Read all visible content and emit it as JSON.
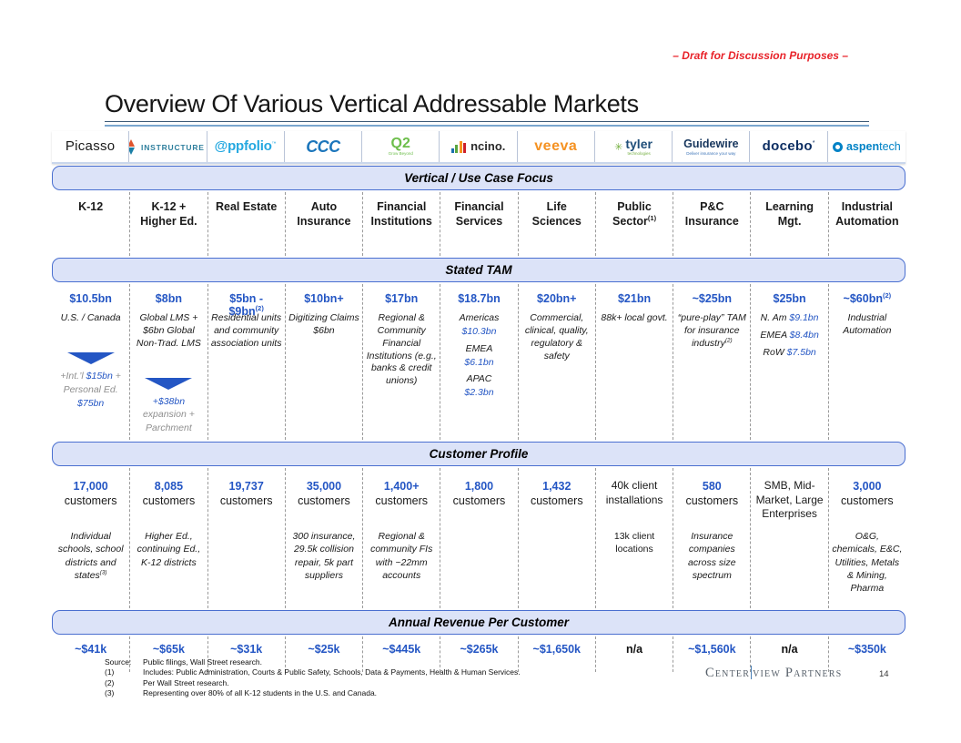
{
  "page": {
    "draft_notice": "– Draft for Discussion Purposes –",
    "title": "Overview Of Various Vertical Addressable Markets",
    "page_number": "14"
  },
  "bands": [
    "Vertical / Use Case Focus",
    "Stated TAM",
    "Customer Profile",
    "Annual Revenue Per Customer"
  ],
  "logos": [
    {
      "id": "picasso",
      "text": "Picasso"
    },
    {
      "id": "instructure",
      "text": "INSTRUCTURE",
      "icon": "diamond-icon"
    },
    {
      "id": "appfolio",
      "text": "@ppfolio"
    },
    {
      "id": "ccc",
      "text": "CCC"
    },
    {
      "id": "q2",
      "text": "Q2",
      "tagline": "Grow Beyond"
    },
    {
      "id": "ncino",
      "text": "ncino.",
      "icon": "bar-chart-icon"
    },
    {
      "id": "veeva",
      "text": "veeva"
    },
    {
      "id": "tyler",
      "text": "tyler",
      "tagline": "technologies",
      "icon": "star-dots-icon"
    },
    {
      "id": "guidewire",
      "text": "Guidewire",
      "tagline": "Deliver insurance your way"
    },
    {
      "id": "docebo",
      "text": "docebo"
    },
    {
      "id": "aspentech",
      "text": "aspen",
      "text2": "tech",
      "icon": "circle-swirl-icon"
    }
  ],
  "columns": [
    {
      "id": "picasso",
      "company": "Picasso",
      "focus": {
        "t": "K-12"
      },
      "tam": {
        "t": "$10.5bn"
      },
      "tam_detail": {
        "lines": [
          {
            "parts": [
              {
                "t": "U.S. / Canada",
                "s": "k"
              }
            ]
          }
        ],
        "arrow": true,
        "extra": [
          {
            "parts": [
              {
                "t": "+Int.’l ",
                "s": "g"
              },
              {
                "t": "$15bn",
                "s": "b"
              },
              {
                "t": " +",
                "s": "g"
              }
            ]
          },
          {
            "parts": [
              {
                "t": "Personal Ed.",
                "s": "g"
              }
            ]
          },
          {
            "parts": [
              {
                "t": "$75bn",
                "s": "b"
              }
            ]
          }
        ]
      },
      "customers": {
        "num": "17,000",
        "label": "customers"
      },
      "customer_desc": {
        "lines": [
          {
            "parts": [
              {
                "t": "Individual schools, school districts and states",
                "s": "i"
              },
              {
                "t": "(3)",
                "s": "i",
                "sup": true
              }
            ]
          }
        ]
      },
      "revenue": {
        "t": "~$41k"
      }
    },
    {
      "id": "instructure",
      "company": "Instructure",
      "focus": {
        "t": "K-12 + Higher Ed."
      },
      "tam": {
        "t": "$8bn"
      },
      "tam_detail": {
        "lines": [
          {
            "parts": [
              {
                "t": "Global LMS + $6bn Global Non-Trad. LMS",
                "s": "k"
              }
            ]
          }
        ],
        "arrow": true,
        "extra": [
          {
            "parts": [
              {
                "t": "+$38bn",
                "s": "b"
              }
            ]
          },
          {
            "parts": [
              {
                "t": "expansion +",
                "s": "g"
              }
            ]
          },
          {
            "parts": [
              {
                "t": "Parchment",
                "s": "g"
              }
            ]
          }
        ]
      },
      "customers": {
        "num": "8,085",
        "label": "customers"
      },
      "customer_desc": {
        "lines": [
          {
            "parts": [
              {
                "t": "Higher Ed., continuing Ed., K-12 districts",
                "s": "i"
              }
            ]
          }
        ]
      },
      "revenue": {
        "t": "~$65k"
      }
    },
    {
      "id": "appfolio",
      "company": "AppFolio",
      "focus": {
        "t": "Real Estate"
      },
      "tam": {
        "t": "$5bn - $9bn",
        "sup": "(2)"
      },
      "tam_detail": {
        "lines": [
          {
            "parts": [
              {
                "t": "Residential units and community association units",
                "s": "k"
              }
            ]
          }
        ]
      },
      "customers": {
        "num": "19,737",
        "label": "customers"
      },
      "revenue": {
        "t": "~$31k"
      }
    },
    {
      "id": "ccc",
      "company": "CCC",
      "focus": {
        "t": "Auto Insurance"
      },
      "tam": {
        "t": "$10bn+"
      },
      "tam_detail": {
        "lines": [
          {
            "parts": [
              {
                "t": "Digitizing Claims $6bn",
                "s": "k"
              }
            ]
          }
        ]
      },
      "customers": {
        "num": "35,000",
        "label": "customers"
      },
      "customer_desc": {
        "lines": [
          {
            "parts": [
              {
                "t": "300 insurance, 29.5k collision repair, 5k part suppliers",
                "s": "i"
              }
            ]
          }
        ]
      },
      "revenue": {
        "t": "~$25k"
      }
    },
    {
      "id": "q2",
      "company": "Q2",
      "focus": {
        "t": "Financial Institutions"
      },
      "tam": {
        "t": "$17bn"
      },
      "tam_detail": {
        "lines": [
          {
            "parts": [
              {
                "t": "Regional & Community Financial Institutions (e.g., banks & credit unions)",
                "s": "k"
              }
            ]
          }
        ]
      },
      "customers": {
        "num": "1,400+",
        "label": "customers"
      },
      "customer_desc": {
        "lines": [
          {
            "parts": [
              {
                "t": "Regional & community FIs with ~22mm accounts",
                "s": "i"
              }
            ]
          }
        ]
      },
      "revenue": {
        "t": "~$445k"
      }
    },
    {
      "id": "ncino",
      "company": "nCino",
      "focus": {
        "t": "Financial Services"
      },
      "tam": {
        "t": "$18.7bn"
      },
      "tam_detail": {
        "lines": [
          {
            "parts": [
              {
                "t": "Americas",
                "s": "k"
              }
            ]
          },
          {
            "parts": [
              {
                "t": "$10.3bn",
                "s": "b"
              }
            ]
          },
          {
            "parts": [
              {
                "t": "EMEA",
                "s": "k"
              }
            ],
            "gap": true
          },
          {
            "parts": [
              {
                "t": "$6.1bn",
                "s": "b"
              }
            ]
          },
          {
            "parts": [
              {
                "t": "APAC",
                "s": "k"
              }
            ],
            "gap": true
          },
          {
            "parts": [
              {
                "t": "$2.3bn",
                "s": "b"
              }
            ]
          }
        ]
      },
      "customers": {
        "num": "1,800",
        "label": "customers"
      },
      "revenue": {
        "t": "~$265k"
      }
    },
    {
      "id": "veeva",
      "company": "Veeva",
      "focus": {
        "t": "Life Sciences"
      },
      "tam": {
        "t": "$20bn+"
      },
      "tam_detail": {
        "lines": [
          {
            "parts": [
              {
                "t": "Commercial, clinical, quality, regulatory & safety",
                "s": "k"
              }
            ]
          }
        ]
      },
      "customers": {
        "num": "1,432",
        "label": "customers"
      },
      "revenue": {
        "t": "~$1,650k"
      }
    },
    {
      "id": "tyler",
      "company": "Tyler Technologies",
      "focus": {
        "t": "Public Sector",
        "sup": "(1)"
      },
      "tam": {
        "t": "$21bn"
      },
      "tam_detail": {
        "lines": [
          {
            "parts": [
              {
                "t": "88k+ local govt.",
                "s": "k"
              }
            ]
          }
        ]
      },
      "customers": {
        "plain": "40k client installations"
      },
      "customer_desc": {
        "lines": [
          {
            "parts": [
              {
                "t": "13k client locations",
                "s": "p"
              }
            ]
          }
        ]
      },
      "revenue": {
        "t": "n/a",
        "na": true
      }
    },
    {
      "id": "guidewire",
      "company": "Guidewire",
      "focus": {
        "t": "P&C Insurance"
      },
      "tam": {
        "t": "~$25bn"
      },
      "tam_detail": {
        "lines": [
          {
            "parts": [
              {
                "t": "“pure-play” TAM for insurance industry",
                "s": "k"
              },
              {
                "t": "(2)",
                "s": "k",
                "sup": true
              }
            ]
          }
        ]
      },
      "customers": {
        "num": "580",
        "label": "customers"
      },
      "customer_desc": {
        "lines": [
          {
            "parts": [
              {
                "t": "Insurance companies across size spectrum",
                "s": "i"
              }
            ]
          }
        ]
      },
      "revenue": {
        "t": "~$1,560k"
      }
    },
    {
      "id": "docebo",
      "company": "Docebo",
      "focus": {
        "t": "Learning Mgt."
      },
      "tam": {
        "t": "$25bn"
      },
      "tam_detail": {
        "lines": [
          {
            "parts": [
              {
                "t": "N. Am ",
                "s": "k"
              },
              {
                "t": "$9.1bn",
                "s": "b"
              }
            ]
          },
          {
            "parts": [
              {
                "t": "EMEA ",
                "s": "k"
              },
              {
                "t": "$8.4bn",
                "s": "b"
              }
            ],
            "gap": true
          },
          {
            "parts": [
              {
                "t": "RoW ",
                "s": "k"
              },
              {
                "t": "$7.5bn",
                "s": "b"
              }
            ],
            "gap": true
          }
        ]
      },
      "customers": {
        "plain": "SMB, Mid-Market, Large Enterprises"
      },
      "revenue": {
        "t": "n/a",
        "na": true
      }
    },
    {
      "id": "aspentech",
      "company": "AspenTech",
      "focus": {
        "t": "Industrial Automation"
      },
      "tam": {
        "t": "~$60bn",
        "sup": "(2)"
      },
      "tam_detail": {
        "lines": [
          {
            "parts": [
              {
                "t": "Industrial Automation",
                "s": "k"
              }
            ]
          }
        ]
      },
      "customers": {
        "num": "3,000",
        "label": "customers"
      },
      "customer_desc": {
        "lines": [
          {
            "parts": [
              {
                "t": "O&G, chemicals, E&C, Utilities, Metals & Mining, Pharma",
                "s": "i"
              }
            ]
          }
        ]
      },
      "revenue": {
        "t": "~$350k"
      }
    }
  ],
  "footer": {
    "source_label": "Source:",
    "source_text": "Public filings, Wall Street research.",
    "notes": [
      {
        "label": "(1)",
        "text": "Includes: Public Administration, Courts & Public Safety, Schools, Data & Payments, Health & Human Services."
      },
      {
        "label": "(2)",
        "text": "Per Wall Street research."
      },
      {
        "label": "(3)",
        "text": "Representing over 80% of all K-12 students in the U.S. and Canada."
      }
    ],
    "brand_parts": [
      "Center",
      "view Partners"
    ]
  },
  "colors": {
    "accent_blue": "#2456c4",
    "band_fill": "#dce3f8",
    "band_border": "#4a6fd0",
    "draft_red": "#e8232a",
    "muted_gray": "#8f8f8f"
  }
}
